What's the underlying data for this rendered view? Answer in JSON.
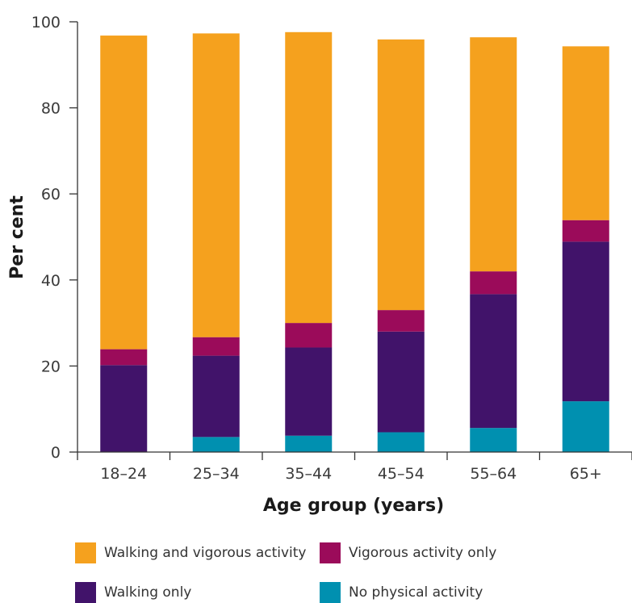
{
  "chart_data": {
    "type": "bar",
    "stacked": true,
    "categories": [
      "18–24",
      "25–34",
      "35–44",
      "45–54",
      "55–64",
      "65+"
    ],
    "series": [
      {
        "name": "No physical activity",
        "color": "#0090b0",
        "values": [
          0,
          3.5,
          3.8,
          4.6,
          5.6,
          11.8
        ]
      },
      {
        "name": "Walking only",
        "color": "#41136a",
        "values": [
          20.2,
          18.9,
          20.5,
          23.4,
          31.1,
          37.1
        ]
      },
      {
        "name": "Vigorous activity only",
        "color": "#9b0b5a",
        "values": [
          3.7,
          4.3,
          5.7,
          5.0,
          5.3,
          5.0
        ]
      },
      {
        "name": "Walking and vigorous activity",
        "color": "#f5a11e",
        "values": [
          72.9,
          70.6,
          67.6,
          62.9,
          54.4,
          40.4
        ]
      }
    ],
    "xlabel": "Age group (years)",
    "ylabel": "Per cent",
    "ylim": [
      0,
      100
    ],
    "yticks": [
      0,
      20,
      40,
      60,
      80,
      100
    ],
    "grid": false,
    "legend_position": "bottom"
  },
  "legend": [
    {
      "label": "Walking and vigorous activity",
      "color": "#f5a11e"
    },
    {
      "label": "Vigorous activity only",
      "color": "#9b0b5a"
    },
    {
      "label": "Walking only",
      "color": "#41136a"
    },
    {
      "label": "No physical activity",
      "color": "#0090b0"
    }
  ]
}
